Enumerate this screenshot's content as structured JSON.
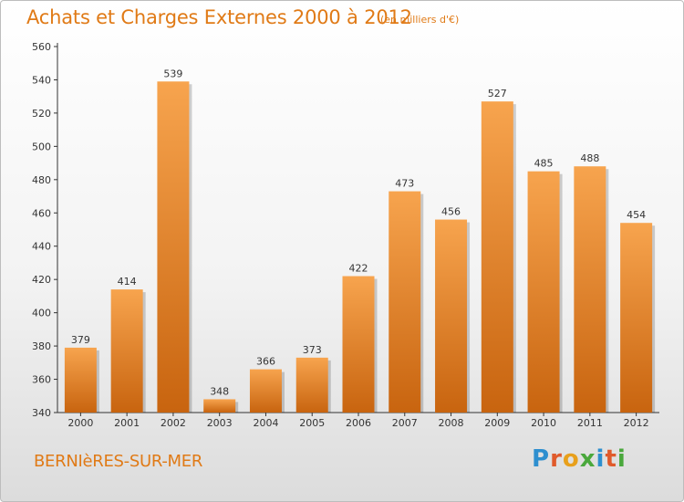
{
  "title": "Achats et Charges Externes 2000 à 2012",
  "subtitle": "(en milliers d'€)",
  "commune": "BERNIèRES-SUR-MER",
  "brand": "Proxiti",
  "colors": {
    "bar_light": "#f7a44e",
    "bar_dark": "#c8640f",
    "text_orange": "#e07a16",
    "brand_letters": [
      "#2e8fcf",
      "#e05a2b",
      "#e8a01c",
      "#4aa83c",
      "#2e8fcf",
      "#e05a2b",
      "#4aa83c"
    ]
  },
  "chart_data": {
    "type": "bar",
    "categories": [
      "2000",
      "2001",
      "2002",
      "2003",
      "2004",
      "2005",
      "2006",
      "2007",
      "2008",
      "2009",
      "2010",
      "2011",
      "2012"
    ],
    "values": [
      379,
      414,
      539,
      348,
      366,
      373,
      422,
      473,
      456,
      527,
      485,
      488,
      454
    ],
    "ylim": [
      340,
      560
    ],
    "yticks": [
      340,
      360,
      380,
      400,
      420,
      440,
      460,
      480,
      500,
      520,
      540,
      560
    ],
    "grid": false,
    "data_labels": true
  }
}
